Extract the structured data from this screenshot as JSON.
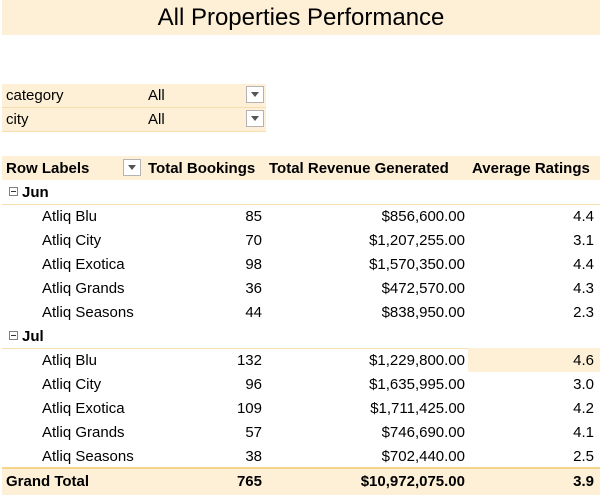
{
  "title": "All Properties Performance",
  "filters": [
    {
      "label": "category",
      "value": "All"
    },
    {
      "label": "city",
      "value": "All"
    }
  ],
  "headers": {
    "row_labels": "Row Labels",
    "bookings": "Total Bookings",
    "revenue": "Total Revenue Generated",
    "ratings": "Average Ratings"
  },
  "groups": [
    {
      "label": "Jun",
      "rows": [
        {
          "name": "Atliq Blu",
          "bookings": "85",
          "revenue": "$856,600.00",
          "rating": "4.4"
        },
        {
          "name": "Atliq City",
          "bookings": "70",
          "revenue": "$1,207,255.00",
          "rating": "3.1"
        },
        {
          "name": "Atliq Exotica",
          "bookings": "98",
          "revenue": "$1,570,350.00",
          "rating": "4.4"
        },
        {
          "name": "Atliq Grands",
          "bookings": "36",
          "revenue": "$472,570.00",
          "rating": "4.3"
        },
        {
          "name": "Atliq Seasons",
          "bookings": "44",
          "revenue": "$838,950.00",
          "rating": "2.3"
        }
      ]
    },
    {
      "label": "Jul",
      "rows": [
        {
          "name": "Atliq Blu",
          "bookings": "132",
          "revenue": "$1,229,800.00",
          "rating": "4.6"
        },
        {
          "name": "Atliq City",
          "bookings": "96",
          "revenue": "$1,635,995.00",
          "rating": "3.0"
        },
        {
          "name": "Atliq Exotica",
          "bookings": "109",
          "revenue": "$1,711,425.00",
          "rating": "4.2"
        },
        {
          "name": "Atliq Grands",
          "bookings": "57",
          "revenue": "$746,690.00",
          "rating": "4.1"
        },
        {
          "name": "Atliq Seasons",
          "bookings": "38",
          "revenue": "$702,440.00",
          "rating": "2.5"
        }
      ]
    }
  ],
  "grand_total": {
    "label": "Grand Total",
    "bookings": "765",
    "revenue": "$10,972,075.00",
    "rating": "3.9"
  },
  "colors": {
    "band": "#fdf0d6",
    "border": "#f6d58b"
  }
}
